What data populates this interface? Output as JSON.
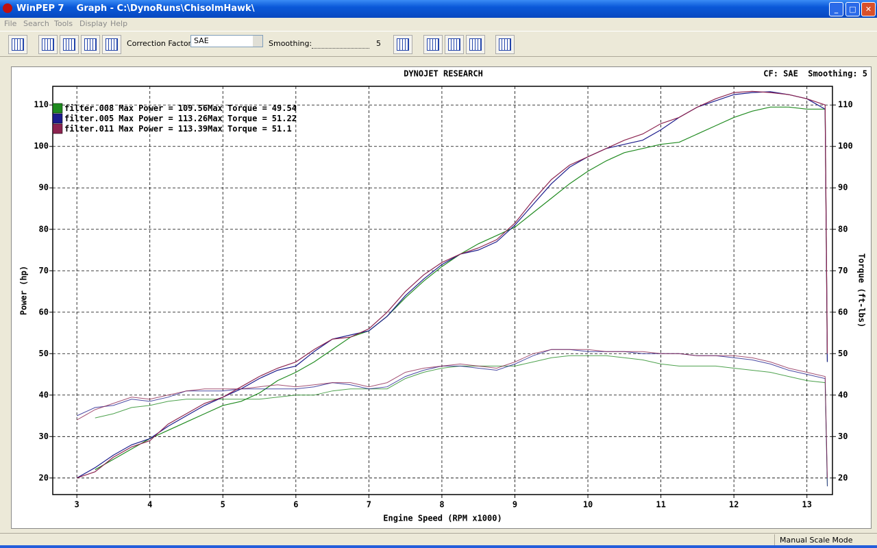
{
  "window": {
    "title": "WinPEP 7    Graph - C:\\DynoRuns\\ChisolmHawk\\"
  },
  "menu": [
    "File",
    "Search",
    "Tools",
    "Display",
    "Help"
  ],
  "toolbar": {
    "correction_label": "Correction Factor:",
    "correction_value": "SAE",
    "smoothing_label": "Smoothing:",
    "smoothing": 5
  },
  "status": "Manual Scale Mode",
  "chart_data": {
    "type": "line",
    "title": "DYNOJET RESEARCH",
    "subtitle": "CF: SAE  Smoothing: 5",
    "x_label": "Engine Speed (RPM x1000)",
    "y_label": "Power (hp)",
    "y2_label": "Torque (ft-lbs)",
    "legend_labels": {
      "power": "Max Power =",
      "torque": "Max Torque ="
    },
    "xlim": [
      2.67,
      13.35
    ],
    "ylim": [
      16,
      114.5
    ],
    "y2lim": [
      16,
      114.5
    ],
    "xticks": [
      3,
      4,
      5,
      6,
      7,
      8,
      9,
      10,
      11,
      12,
      13
    ],
    "yticks": [
      20,
      30,
      40,
      50,
      60,
      70,
      80,
      90,
      100,
      110
    ],
    "y2ticks": [
      20,
      30,
      40,
      50,
      60,
      70,
      80,
      90,
      100,
      110
    ],
    "grid": true,
    "legend": "upper left",
    "x": [
      3,
      3.25,
      3.5,
      3.75,
      4,
      4.25,
      4.5,
      4.75,
      5,
      5.25,
      5.5,
      5.75,
      6,
      6.25,
      6.5,
      6.75,
      7,
      7.25,
      7.5,
      7.75,
      8,
      8.25,
      8.5,
      8.75,
      9,
      9.25,
      9.5,
      9.75,
      10,
      10.25,
      10.5,
      10.75,
      11,
      11.25,
      11.5,
      11.75,
      12,
      12.25,
      12.5,
      12.75,
      13,
      13.25,
      13.28
    ],
    "series": [
      {
        "name": "filter.008",
        "color": "#1f8a1f",
        "max_power": 109.56,
        "max_torque": 49.54,
        "values": [
          null,
          22,
          24.5,
          27,
          29.5,
          31.5,
          33.5,
          35.5,
          37.5,
          38.5,
          40.5,
          43.5,
          45.5,
          48,
          51,
          54,
          55.5,
          59,
          63.5,
          67.5,
          71,
          74,
          76.5,
          78.5,
          80.5,
          84,
          87.5,
          91,
          94,
          96.5,
          98.5,
          99.5,
          100.5,
          101,
          103,
          105,
          107,
          108.5,
          109.5,
          109.5,
          109,
          109,
          48
        ],
        "y2_values": [
          null,
          34.5,
          35.5,
          37,
          37.5,
          38.5,
          39,
          39,
          39,
          39,
          39,
          39.5,
          40,
          40,
          41,
          41.5,
          41.5,
          41.5,
          44,
          45.5,
          46.5,
          47,
          47,
          47,
          47,
          48,
          49,
          49.5,
          49.5,
          49.5,
          49,
          48.5,
          47.5,
          47,
          47,
          47,
          46.5,
          46,
          45.5,
          44.5,
          43.5,
          43,
          18
        ]
      },
      {
        "name": "filter.005",
        "color": "#1c1c8c",
        "max_power": 113.26,
        "max_torque": 51.22,
        "values": [
          20,
          22.5,
          25.5,
          28,
          29.5,
          32.5,
          35,
          37.5,
          39.5,
          41.5,
          44,
          46,
          47,
          50.5,
          53.5,
          54.5,
          55.5,
          59,
          64,
          68,
          71.5,
          74,
          75,
          77,
          81,
          86,
          91,
          95,
          97.5,
          99.5,
          100.5,
          101.5,
          104,
          107,
          109.5,
          111,
          112.5,
          113,
          113.2,
          112.5,
          111.5,
          109,
          48
        ],
        "y2_values": [
          35,
          37,
          37.5,
          39,
          38.5,
          39.5,
          41,
          41,
          41,
          41.5,
          41.5,
          41.5,
          41.5,
          42,
          43,
          42.5,
          41.5,
          42,
          44.5,
          46,
          47,
          47,
          46.5,
          46,
          47.5,
          49.5,
          51,
          51,
          50.5,
          50.5,
          50.5,
          50,
          50,
          50,
          49.5,
          49.5,
          49,
          48.5,
          47.5,
          46,
          45,
          44,
          18
        ]
      },
      {
        "name": "filter.011",
        "color": "#8c2450",
        "max_power": 113.39,
        "max_torque": 51.1,
        "values": [
          20,
          21.5,
          25,
          27.5,
          29,
          33,
          35.5,
          38,
          39.5,
          42,
          44.5,
          46.5,
          48,
          51,
          53.5,
          54,
          56,
          60,
          65,
          69,
          72,
          74,
          75.5,
          77.5,
          81.5,
          87,
          92,
          95.5,
          97.5,
          99.5,
          101.5,
          103,
          105.5,
          107,
          109.5,
          111.5,
          113,
          113.3,
          113,
          112.5,
          111.5,
          110,
          50
        ],
        "y2_values": [
          34,
          36.5,
          38,
          39.5,
          39,
          40,
          41,
          41.5,
          41.5,
          41.5,
          42,
          42.5,
          42,
          42.5,
          43,
          43,
          42,
          43,
          45.5,
          46.5,
          47,
          47.5,
          47,
          46.5,
          48,
          50,
          51,
          51,
          51,
          50.5,
          50.5,
          50.5,
          50,
          50,
          49.5,
          49.5,
          49.5,
          49,
          48,
          46.5,
          45.5,
          44.5,
          20
        ]
      }
    ]
  }
}
